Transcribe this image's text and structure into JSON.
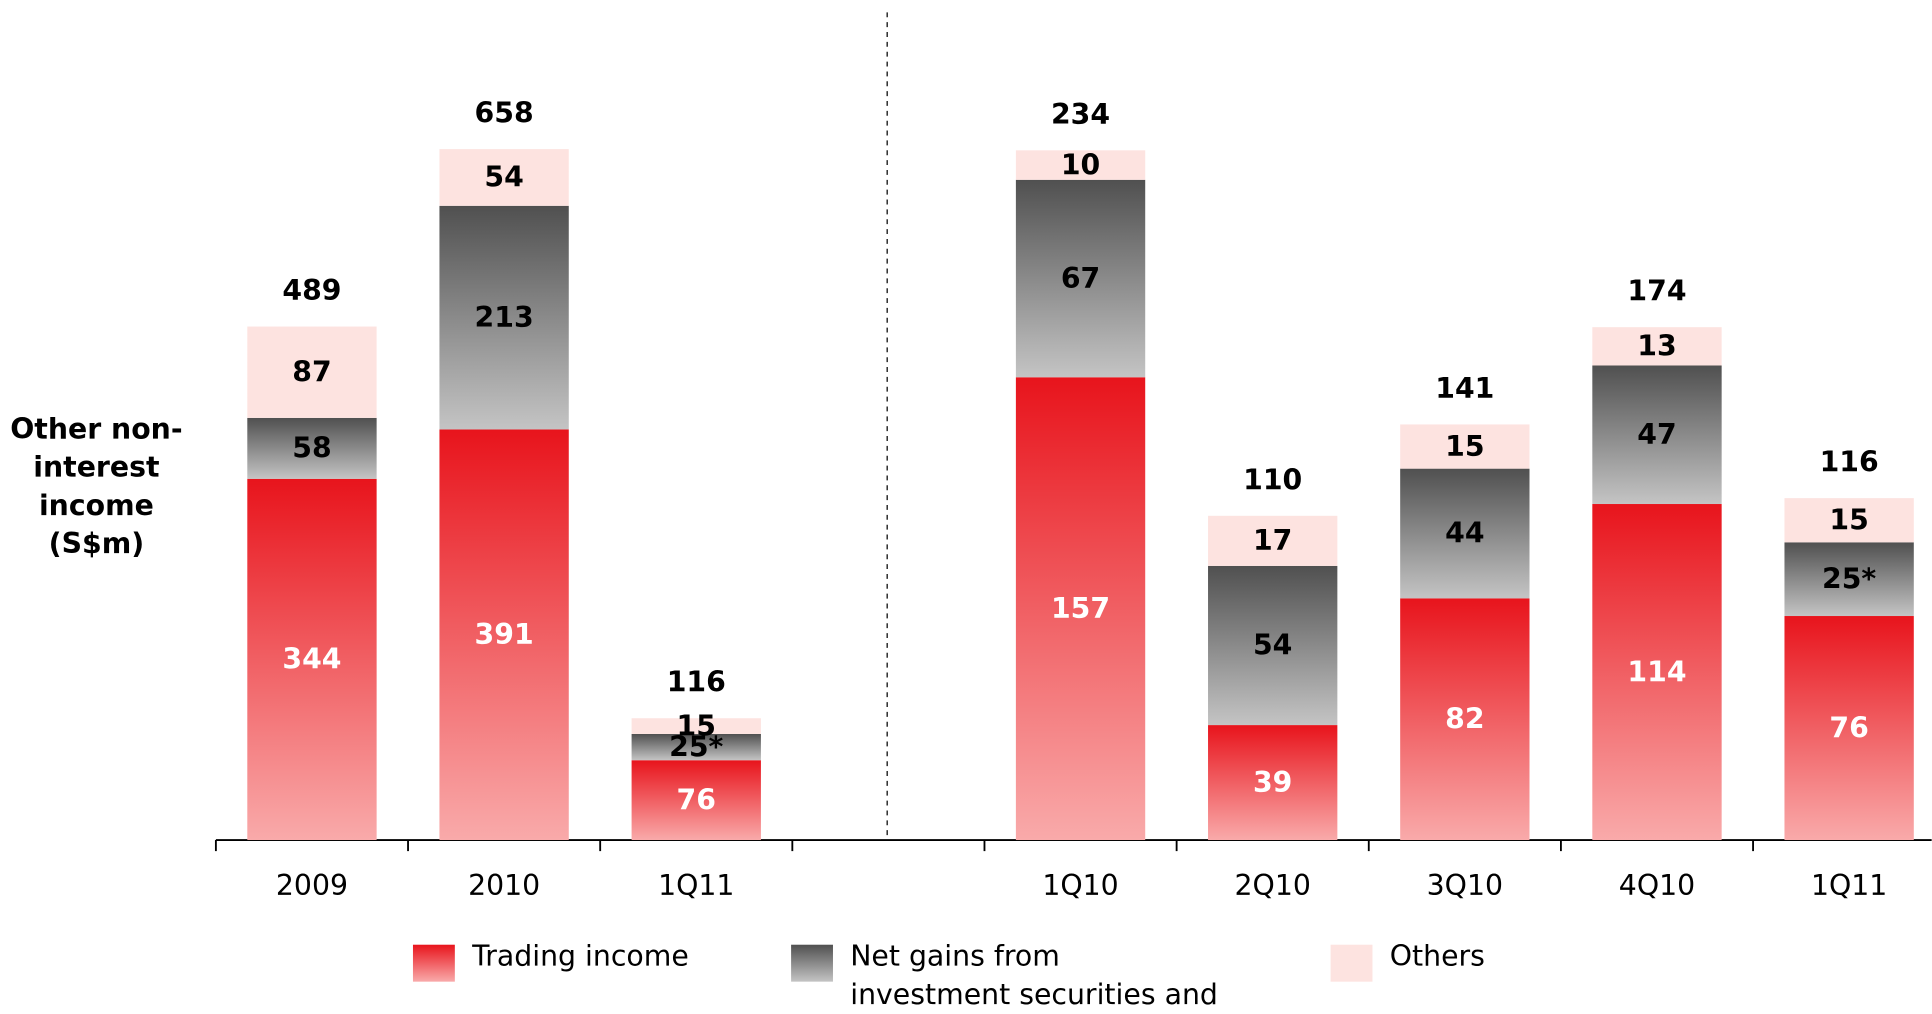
{
  "chart_data": [
    {
      "type": "stacked_bar",
      "y_label": "Other non-interest income (S$m)",
      "categories": [
        "2009",
        "2010",
        "1Q11"
      ],
      "series": [
        {
          "name": "Trading income",
          "color": "#e8141c",
          "values": [
            344,
            391,
            76
          ]
        },
        {
          "name": "Net gains from investment securities and disposals",
          "color": "#505050",
          "values": [
            58,
            213,
            25
          ],
          "value_labels": [
            "58",
            "213",
            "25*"
          ]
        },
        {
          "name": "Others",
          "color": "#fde3e0",
          "values": [
            87,
            54,
            15
          ]
        }
      ],
      "totals": [
        489,
        658,
        116
      ],
      "ylim": [
        0,
        800
      ]
    },
    {
      "type": "stacked_bar",
      "categories": [
        "1Q10",
        "2Q10",
        "3Q10",
        "4Q10",
        "1Q11"
      ],
      "series": [
        {
          "name": "Trading income",
          "color": "#e8141c",
          "values": [
            157,
            39,
            82,
            114,
            76
          ]
        },
        {
          "name": "Net gains from investment securities and disposals",
          "color": "#505050",
          "values": [
            67,
            54,
            44,
            47,
            25
          ],
          "value_labels": [
            "67",
            "54",
            "44",
            "47",
            "25*"
          ]
        },
        {
          "name": "Others",
          "color": "#fde3e0",
          "values": [
            10,
            17,
            15,
            13,
            15
          ]
        }
      ],
      "totals": [
        234,
        110,
        141,
        174,
        116
      ],
      "ylim": [
        0,
        285
      ]
    }
  ]
}
